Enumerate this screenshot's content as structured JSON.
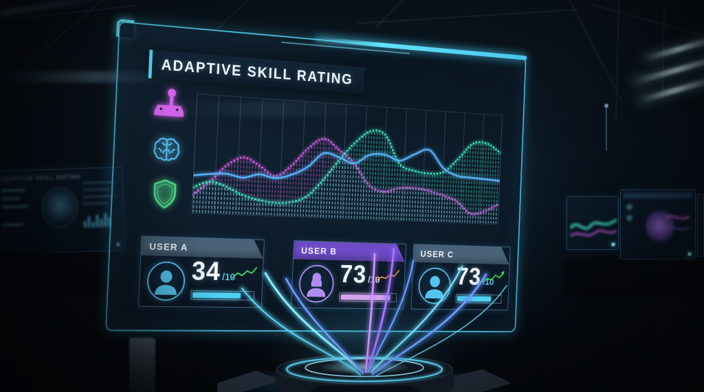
{
  "app": {
    "title": "ADAPTIVE SKILL RATING"
  },
  "legend_icons": [
    {
      "name": "joystick",
      "color": "#cf63e8"
    },
    {
      "name": "brain",
      "color": "#55b9e9"
    },
    {
      "name": "shield",
      "color": "#4fd888"
    }
  ],
  "chart_data": {
    "type": "line",
    "title": "",
    "xlabel": "",
    "ylabel": "",
    "x": [
      0,
      5,
      10,
      15,
      20,
      25,
      30,
      35,
      40,
      45,
      50,
      55,
      60,
      65,
      70,
      75,
      80,
      85,
      90,
      95,
      100
    ],
    "series": [
      {
        "name": "skill-wave-magenta",
        "color": "#d85ce0",
        "style": "dotted-ridge",
        "fill": true,
        "values": [
          13,
          26,
          42,
          50,
          43,
          34,
          45,
          62,
          72,
          62,
          50,
          30,
          24,
          28,
          29,
          27,
          23,
          18,
          6,
          9,
          17
        ]
      },
      {
        "name": "skill-wave-teal",
        "color": "#3fe7c0",
        "style": "dotted-ridge",
        "fill": true,
        "values": [
          20,
          26,
          22,
          15,
          11,
          9,
          10,
          16,
          32,
          52,
          70,
          82,
          79,
          52,
          46,
          44,
          46,
          60,
          76,
          77,
          68
        ]
      },
      {
        "name": "skill-wave-blue",
        "color": "#55aef2",
        "style": "solid-line",
        "fill": false,
        "values": [
          31,
          33,
          34,
          31,
          35,
          32,
          36,
          44,
          58,
          55,
          50,
          59,
          60,
          55,
          62,
          67,
          50,
          43,
          42,
          41,
          40
        ]
      }
    ],
    "ylim": [
      0,
      100
    ],
    "grid": {
      "vertical_lines": 15,
      "horizontal_lines": 0
    },
    "legend": "none",
    "tick_labels": "none"
  },
  "users": [
    {
      "label": "USER A",
      "score": "34",
      "denom": "/10",
      "progress_pct": 80,
      "header_color": "#4a6379",
      "accent_color": "#4fd0f2",
      "denom_color": "#49c3ea",
      "trend_color": "#3ed66a",
      "avatar_color": "#54c4ee",
      "avatar_variant": "male",
      "trend": [
        5,
        9,
        7,
        11,
        9,
        14
      ],
      "trend_arrow": false
    },
    {
      "label": "USER B",
      "score": "73",
      "denom": "/10",
      "progress_pct": 90,
      "header_color": "#6f4bc8",
      "accent_color": "#d9a3ef",
      "denom_color": "#cdd5e2",
      "trend_color": "#e6953c",
      "avatar_color": "#b18cf0",
      "avatar_variant": "female",
      "trend": [
        4,
        7,
        6,
        9,
        8,
        13
      ],
      "trend_arrow": false
    },
    {
      "label": "USER C",
      "score": "73",
      "denom": "/10",
      "progress_pct": 78,
      "header_color": "#4a6379",
      "accent_color": "#4fd0f2",
      "denom_color": "#49c3ea",
      "trend_color": "#34d857",
      "avatar_color": "#54c4ee",
      "avatar_variant": "male",
      "trend": [
        3,
        8,
        6,
        12,
        9,
        15
      ],
      "trend_arrow": true
    }
  ],
  "background": {
    "left_monitor": {
      "title": "ADAPTIVE SKILL RATING"
    }
  },
  "theme": {
    "panel_border": "#4fd4f7",
    "beam_colors": [
      "#5fd8f8",
      "#4f86f5",
      "#8e5cf5",
      "#b47af8"
    ]
  }
}
